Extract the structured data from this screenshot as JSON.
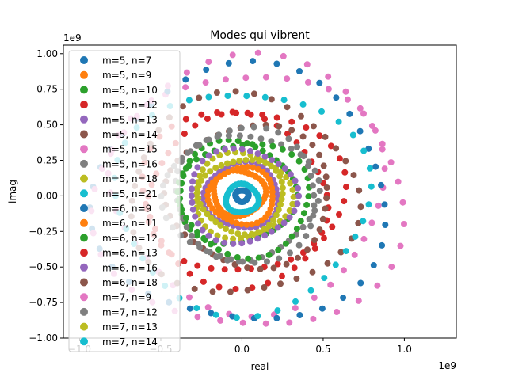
{
  "chart_data": {
    "type": "scatter",
    "title": "Modes qui vibrent",
    "xlabel": "real",
    "ylabel": "imag",
    "x_exponent_label": "1e9",
    "y_exponent_label": "1e9",
    "xlim": [
      -1.1,
      1.32
    ],
    "ylim": [
      -1.0,
      1.06
    ],
    "x_ticks": [
      -1.0,
      -0.5,
      0.0,
      0.5,
      1.0
    ],
    "x_tick_labels": [
      "−1.0",
      "−0.5",
      "0.0",
      "0.5",
      "1.0"
    ],
    "y_ticks": [
      -1.0,
      -0.75,
      -0.5,
      -0.25,
      0.0,
      0.25,
      0.5,
      0.75,
      1.0
    ],
    "y_tick_labels": [
      "−1.00",
      "−0.75",
      "−0.50",
      "−0.25",
      "0.00",
      "0.25",
      "0.50",
      "0.75",
      "1.00"
    ],
    "grid": false,
    "legend_position": "upper-left",
    "series": [
      {
        "name": "m=5, n=7",
        "color": "#1f77b4",
        "radius": 0.04,
        "center": [
          0.0,
          0.0
        ],
        "count": 40
      },
      {
        "name": "m=5, n=9",
        "color": "#ff7f0e",
        "radius": 0.16,
        "center": [
          -0.02,
          0.02
        ],
        "count": 40
      },
      {
        "name": "m=5, n=10",
        "color": "#2ca02c",
        "radius": 0.36,
        "center": [
          -0.04,
          0.02
        ],
        "count": 40
      },
      {
        "name": "m=5, n=12",
        "color": "#d62728",
        "radius": 0.55,
        "center": [
          -0.03,
          0.0
        ],
        "count": 40
      },
      {
        "name": "m=5, n=13",
        "color": "#9467bd",
        "radius": 0.23,
        "center": [
          0.0,
          0.0
        ],
        "count": 40
      },
      {
        "name": "m=5, n=14",
        "color": "#8c564b",
        "radius": 0.5,
        "center": [
          0.05,
          0.0
        ],
        "count": 40
      },
      {
        "name": "m=5, n=15",
        "color": "#e377c2",
        "radius": 0.84,
        "center": [
          0.04,
          0.04
        ],
        "count": 40
      },
      {
        "name": "m=5, n=16",
        "color": "#7f7f7f",
        "radius": 0.44,
        "center": [
          0.02,
          0.0
        ],
        "count": 40
      },
      {
        "name": "m=5, n=18",
        "color": "#bcbd22",
        "radius": 0.3,
        "center": [
          0.0,
          0.0
        ],
        "count": 40
      },
      {
        "name": "m=5, n=21",
        "color": "#17becf",
        "radius": 0.1,
        "center": [
          0.0,
          -0.02
        ],
        "count": 40
      },
      {
        "name": "m=6, n=9",
        "color": "#1f77b4",
        "radius": 0.9,
        "center": [
          0.0,
          0.0
        ],
        "count": 40
      },
      {
        "name": "m=6, n=11",
        "color": "#ff7f0e",
        "radius": 0.2,
        "center": [
          0.0,
          0.0
        ],
        "count": 40
      },
      {
        "name": "m=6, n=12",
        "color": "#2ca02c",
        "radius": 0.4,
        "center": [
          0.02,
          -0.02
        ],
        "count": 40
      },
      {
        "name": "m=6, n=13",
        "color": "#d62728",
        "radius": 0.62,
        "center": [
          0.0,
          0.0
        ],
        "count": 40
      },
      {
        "name": "m=6, n=16",
        "color": "#9467bd",
        "radius": 0.33,
        "center": [
          0.0,
          0.0
        ],
        "count": 40
      },
      {
        "name": "m=6, n=18",
        "color": "#8c564b",
        "radius": 0.7,
        "center": [
          0.0,
          0.0
        ],
        "count": 40
      },
      {
        "name": "m=7, n=9",
        "color": "#e377c2",
        "radius": 0.95,
        "center": [
          0.05,
          0.0
        ],
        "count": 40
      },
      {
        "name": "m=7, n=12",
        "color": "#7f7f7f",
        "radius": 0.47,
        "center": [
          0.0,
          0.0
        ],
        "count": 40
      },
      {
        "name": "m=7, n=13",
        "color": "#bcbd22",
        "radius": 0.26,
        "center": [
          0.0,
          0.0
        ],
        "count": 40
      },
      {
        "name": "m=7, n=14",
        "color": "#17becf",
        "radius": 0.78,
        "center": [
          0.0,
          -0.03
        ],
        "count": 40
      }
    ]
  }
}
